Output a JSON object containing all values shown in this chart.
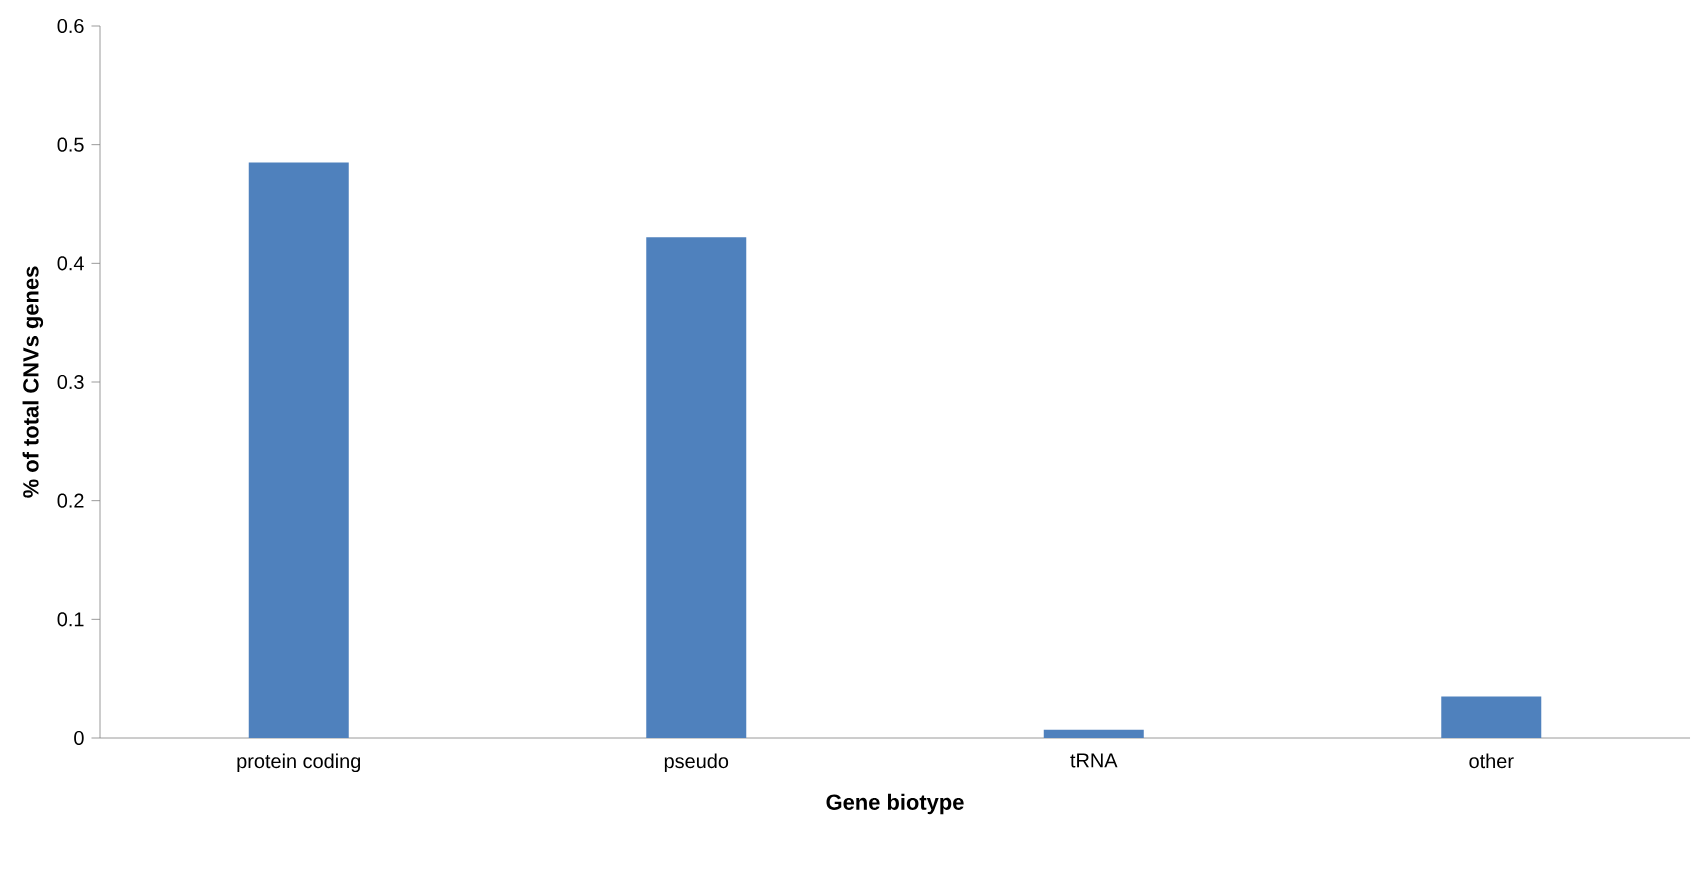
{
  "chart_data": {
    "type": "bar",
    "xlabel": "Gene biotype",
    "ylabel": "% of total CNVs genes",
    "categories": [
      "protein coding",
      "pseudo",
      "tRNA",
      "other"
    ],
    "values": [
      0.485,
      0.422,
      0.007,
      0.035
    ],
    "color": "#4f81bd",
    "ylim": [
      0,
      0.6
    ],
    "yticks": [
      0,
      0.1,
      0.2,
      0.3,
      0.4,
      0.5,
      0.6
    ],
    "grid": false,
    "legend": false
  }
}
